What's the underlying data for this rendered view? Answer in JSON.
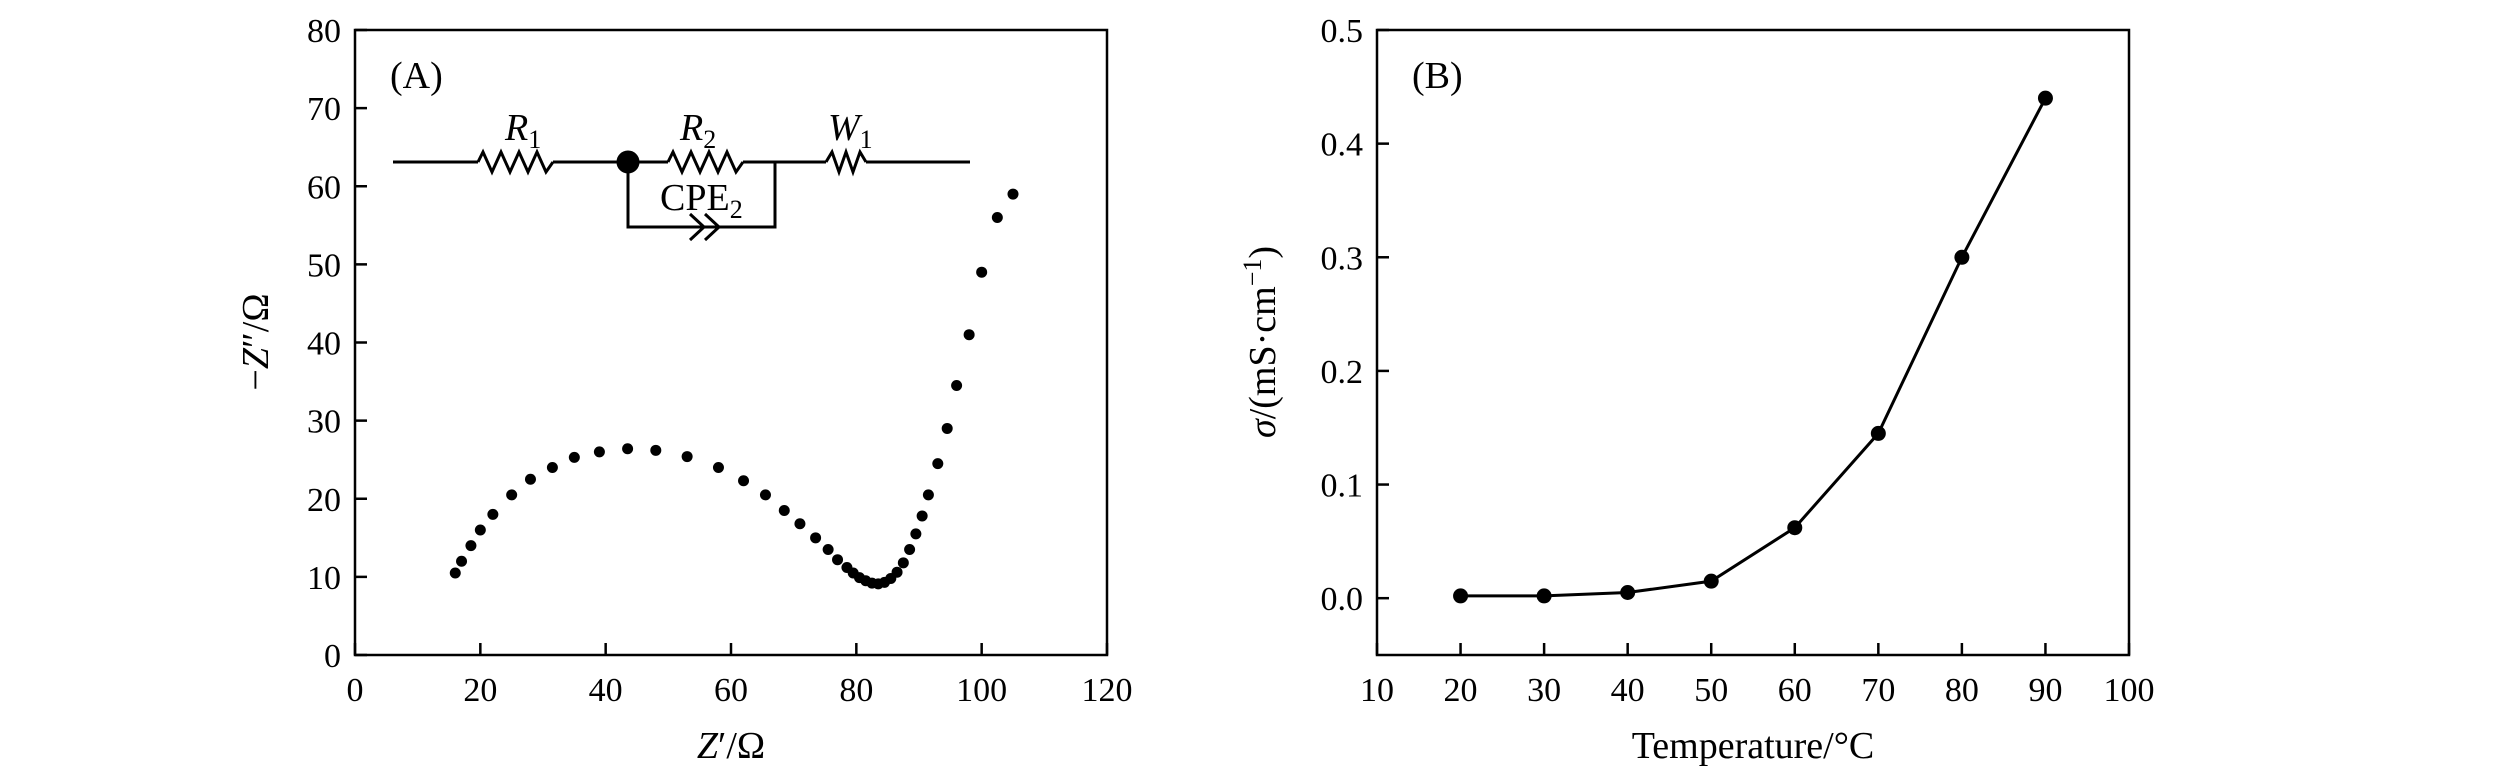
{
  "chart_data": [
    {
      "type": "scatter",
      "panel_label": "(A)",
      "xlabel_main": "Z",
      "xlabel_prime": "′",
      "xlabel_unit": "/Ω",
      "ylabel_prefix": "−",
      "ylabel_main": "Z",
      "ylabel_prime": "″",
      "ylabel_unit": "/Ω",
      "xlim": [
        0,
        120
      ],
      "ylim": [
        0,
        80
      ],
      "xticks": [
        0,
        20,
        40,
        60,
        80,
        100,
        120
      ],
      "yticks": [
        0,
        10,
        20,
        30,
        40,
        50,
        60,
        70,
        80
      ],
      "grid": false,
      "marker_color": "#000000",
      "series": [
        {
          "x": [
            16,
            17,
            18.5,
            20,
            22,
            25,
            28,
            31.5,
            35,
            39,
            43.5,
            48,
            53,
            58,
            62,
            65.5,
            68.5,
            71,
            73.5,
            75.5,
            77,
            78.5,
            79.5,
            80.5,
            81.5,
            82.5,
            83.5,
            84.5,
            85.5,
            86.5,
            87.5,
            88.5,
            89.5,
            90.5,
            91.5,
            93,
            94.5,
            96,
            98,
            100,
            102.5,
            105
          ],
          "y": [
            10.5,
            12,
            14,
            16,
            18,
            20.5,
            22.5,
            24,
            25.3,
            26,
            26.4,
            26.2,
            25.4,
            24,
            22.3,
            20.5,
            18.5,
            16.8,
            15,
            13.5,
            12.2,
            11.2,
            10.5,
            9.9,
            9.5,
            9.2,
            9.1,
            9.3,
            9.8,
            10.6,
            11.8,
            13.5,
            15.5,
            17.8,
            20.5,
            24.5,
            29,
            34.5,
            41,
            49,
            56,
            59
          ]
        }
      ],
      "circuit": {
        "r1_main": "R",
        "r1_sub": "1",
        "r2_main": "R",
        "r2_sub": "2",
        "cpe_main": "CPE",
        "cpe_sub": "2",
        "w1_main": "W",
        "w1_sub": "1"
      }
    },
    {
      "type": "line",
      "panel_label": "(B)",
      "xlabel": "Temperature/°C",
      "ylabel_sigma": "σ",
      "ylabel_unit": "/(mS·cm",
      "ylabel_exp": "−1",
      "ylabel_close": ")",
      "xlim": [
        10,
        100
      ],
      "ylim": [
        -0.05,
        0.5
      ],
      "xticks": [
        10,
        20,
        30,
        40,
        50,
        60,
        70,
        80,
        90,
        100
      ],
      "yticks": [
        "0.0",
        "0.1",
        "0.2",
        "0.3",
        "0.4",
        "0.5"
      ],
      "grid": false,
      "line_color": "#000000",
      "series": [
        {
          "x": [
            20,
            30,
            40,
            50,
            60,
            70,
            80,
            90
          ],
          "y": [
            0.002,
            0.002,
            0.005,
            0.015,
            0.062,
            0.145,
            0.3,
            0.44
          ]
        }
      ]
    }
  ]
}
